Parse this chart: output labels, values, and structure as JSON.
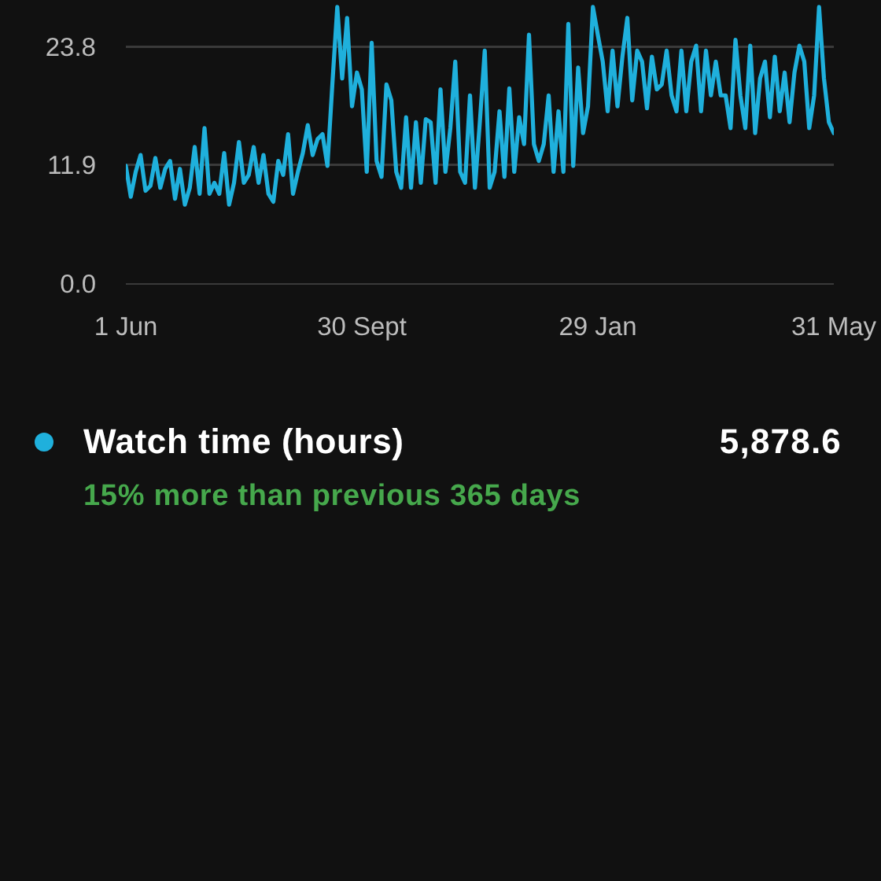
{
  "chart_data": {
    "type": "line",
    "categories": [
      "1 Jun",
      null,
      null,
      null,
      null,
      null,
      null,
      null,
      null,
      null,
      null,
      null,
      null,
      null,
      null,
      null,
      null,
      null,
      null,
      null,
      null,
      null,
      null,
      null,
      null,
      null,
      null,
      null,
      null,
      null,
      null,
      null,
      null,
      null,
      null,
      null,
      null,
      null,
      null,
      null,
      null,
      null,
      null,
      null,
      null,
      null,
      null,
      null,
      "30 Sept",
      null,
      null,
      null,
      null,
      null,
      null,
      null,
      null,
      null,
      null,
      null,
      null,
      null,
      null,
      null,
      null,
      null,
      null,
      null,
      null,
      null,
      null,
      null,
      null,
      null,
      null,
      null,
      null,
      null,
      null,
      null,
      null,
      null,
      null,
      null,
      null,
      null,
      null,
      null,
      null,
      null,
      null,
      null,
      null,
      null,
      null,
      null,
      "29 Jan",
      null,
      null,
      null,
      null,
      null,
      null,
      null,
      null,
      null,
      null,
      null,
      null,
      null,
      null,
      null,
      null,
      null,
      null,
      null,
      null,
      null,
      null,
      null,
      null,
      null,
      null,
      null,
      null,
      null,
      null,
      null,
      null,
      null,
      null,
      null,
      null,
      null,
      null,
      null,
      null,
      null,
      null,
      null,
      null,
      null,
      null,
      null,
      "31 May"
    ],
    "series": [
      {
        "name": "Watch time (hours)",
        "color": "#1fb0dc",
        "values": [
          11.8,
          8.7,
          11.2,
          12.9,
          9.3,
          9.8,
          12.6,
          9.6,
          11.5,
          12.3,
          8.5,
          11.5,
          7.9,
          9.6,
          13.7,
          9.0,
          15.6,
          9.0,
          10.1,
          9.0,
          13.1,
          7.9,
          10.1,
          14.2,
          10.1,
          10.9,
          13.7,
          10.1,
          12.9,
          9.0,
          8.2,
          12.3,
          10.9,
          15.0,
          9.0,
          11.2,
          13.1,
          15.9,
          12.9,
          14.5,
          15.0,
          11.8,
          20.0,
          27.8,
          20.6,
          26.7,
          17.8,
          21.2,
          19.5,
          11.2,
          24.2,
          12.3,
          10.7,
          20.0,
          18.4,
          11.2,
          9.6,
          16.7,
          9.6,
          16.2,
          10.1,
          16.5,
          16.2,
          10.1,
          19.5,
          11.2,
          15.6,
          22.3,
          11.2,
          10.1,
          18.9,
          9.6,
          16.2,
          23.4,
          9.6,
          11.2,
          17.3,
          10.7,
          19.6,
          11.2,
          16.7,
          14.0,
          25.0,
          14.0,
          12.3,
          14.0,
          18.9,
          11.2,
          17.3,
          11.2,
          26.1,
          11.8,
          21.7,
          15.1,
          17.8,
          27.8,
          25.0,
          22.3,
          17.3,
          23.4,
          17.8,
          22.8,
          26.7,
          18.4,
          23.4,
          22.3,
          17.6,
          22.8,
          19.5,
          20.0,
          23.4,
          18.9,
          17.3,
          23.4,
          17.3,
          22.3,
          23.9,
          17.3,
          23.4,
          18.9,
          22.3,
          18.9,
          18.9,
          15.6,
          24.5,
          18.9,
          15.6,
          23.9,
          15.1,
          20.6,
          22.3,
          16.7,
          22.8,
          17.3,
          21.2,
          16.2,
          21.2,
          23.9,
          22.3,
          15.6,
          18.9,
          27.8,
          20.6,
          16.2,
          15.1
        ]
      }
    ],
    "ylim": [
      0,
      28.5
    ],
    "yticks": [
      {
        "value": 0,
        "label": "0.0"
      },
      11.9,
      23.8
    ],
    "grid": "y",
    "legend": "bottom",
    "annotations": [
      "5,878.6",
      "15% more than previous 365 days"
    ]
  }
}
